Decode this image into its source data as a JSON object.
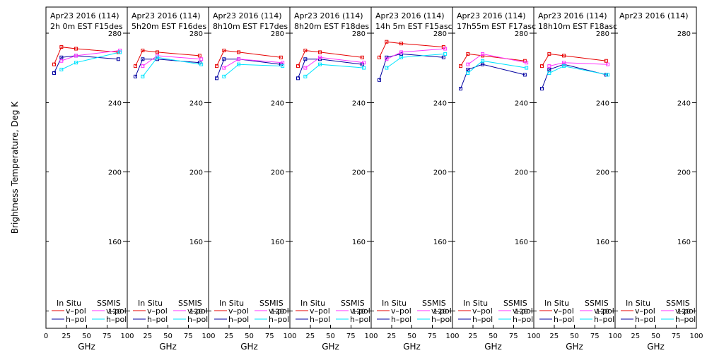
{
  "chart_data": {
    "type": "line",
    "ylabel": "Brightness Temperature, Deg K",
    "xlabel": "GHz",
    "xlim": [
      0,
      100
    ],
    "ylim": [
      110,
      295
    ],
    "xticks": [
      0,
      25,
      50,
      75,
      100
    ],
    "xtick_labels": [
      "0",
      "25",
      "50",
      "75",
      "100"
    ],
    "yticks": [
      120,
      160,
      200,
      240,
      280
    ],
    "legend": {
      "in_situ_header": "In Situ",
      "ssmis_header": "SSMIS",
      "v_pol": "v–pol",
      "h_pol": "h–pol"
    },
    "colors": {
      "insitu_v": "#e60000",
      "insitu_h": "#0000a0",
      "ssmis_v": "#ff33ff",
      "ssmis_h": "#00e5ff"
    },
    "panels": [
      {
        "date": "Apr23 2016 (114)",
        "time": "2h 0m  EST F15des",
        "insitu_v": {
          "x": [
            10,
            19,
            37,
            89
          ],
          "y": [
            262,
            272,
            271,
            269
          ]
        },
        "insitu_h": {
          "x": [
            10,
            19,
            37,
            89
          ],
          "y": [
            257,
            266,
            267,
            265
          ]
        },
        "ssmis_v": {
          "x": [
            19,
            37,
            91
          ],
          "y": [
            264,
            267,
            270
          ]
        },
        "ssmis_h": {
          "x": [
            19,
            37,
            91
          ],
          "y": [
            259,
            263,
            269
          ]
        }
      },
      {
        "date": "Apr23 2016 (114)",
        "time": "5h20m  EST F16des",
        "insitu_v": {
          "x": [
            10,
            19,
            37,
            89
          ],
          "y": [
            261,
            270,
            269,
            267
          ]
        },
        "insitu_h": {
          "x": [
            10,
            19,
            37,
            89
          ],
          "y": [
            255,
            265,
            265,
            263
          ]
        },
        "ssmis_v": {
          "x": [
            19,
            37,
            91
          ],
          "y": [
            261,
            267,
            265
          ]
        },
        "ssmis_h": {
          "x": [
            19,
            37,
            91
          ],
          "y": [
            255,
            266,
            262
          ]
        }
      },
      {
        "date": "Apr23 2016 (114)",
        "time": "8h10m  EST F17des",
        "insitu_v": {
          "x": [
            10,
            19,
            37,
            89
          ],
          "y": [
            261,
            270,
            269,
            266
          ]
        },
        "insitu_h": {
          "x": [
            10,
            19,
            37,
            89
          ],
          "y": [
            254,
            265,
            265,
            262
          ]
        },
        "ssmis_v": {
          "x": [
            19,
            37,
            91
          ],
          "y": [
            260,
            265,
            263
          ]
        },
        "ssmis_h": {
          "x": [
            19,
            37,
            91
          ],
          "y": [
            255,
            262,
            261
          ]
        }
      },
      {
        "date": "Apr23 2016 (114)",
        "time": "8h20m  EST F18des",
        "insitu_v": {
          "x": [
            10,
            19,
            37,
            89
          ],
          "y": [
            261,
            270,
            269,
            266
          ]
        },
        "insitu_h": {
          "x": [
            10,
            19,
            37,
            89
          ],
          "y": [
            254,
            265,
            265,
            262
          ]
        },
        "ssmis_v": {
          "x": [
            19,
            37,
            91
          ],
          "y": [
            260,
            266,
            263
          ]
        },
        "ssmis_h": {
          "x": [
            19,
            37,
            91
          ],
          "y": [
            255,
            262,
            260
          ]
        }
      },
      {
        "date": "Apr23 2016 (114)",
        "time": "14h 5m  EST F15asc",
        "insitu_v": {
          "x": [
            10,
            19,
            37,
            89
          ],
          "y": [
            266,
            275,
            274,
            272
          ]
        },
        "insitu_h": {
          "x": [
            10,
            19,
            37,
            89
          ],
          "y": [
            253,
            266,
            268,
            266
          ]
        },
        "ssmis_v": {
          "x": [
            19,
            37,
            91
          ],
          "y": [
            265,
            269,
            271
          ]
        },
        "ssmis_h": {
          "x": [
            19,
            37,
            91
          ],
          "y": [
            260,
            266,
            268
          ]
        }
      },
      {
        "date": "Apr23 2016 (114)",
        "time": "17h55m  EST F17asc",
        "insitu_v": {
          "x": [
            10,
            19,
            37,
            89
          ],
          "y": [
            261,
            268,
            267,
            264
          ]
        },
        "insitu_h": {
          "x": [
            10,
            19,
            37,
            89
          ],
          "y": [
            248,
            259,
            262,
            256
          ]
        },
        "ssmis_v": {
          "x": [
            19,
            37,
            91
          ],
          "y": [
            262,
            268,
            263
          ]
        },
        "ssmis_h": {
          "x": [
            19,
            37,
            91
          ],
          "y": [
            257,
            264,
            260
          ]
        }
      },
      {
        "date": "Apr23 2016 (114)",
        "time": "18h10m  EST F18asc",
        "insitu_v": {
          "x": [
            10,
            19,
            37,
            89
          ],
          "y": [
            261,
            268,
            267,
            264
          ]
        },
        "insitu_h": {
          "x": [
            10,
            19,
            37,
            89
          ],
          "y": [
            248,
            259,
            262,
            256
          ]
        },
        "ssmis_v": {
          "x": [
            19,
            37,
            91
          ],
          "y": [
            261,
            263,
            262
          ]
        },
        "ssmis_h": {
          "x": [
            19,
            37,
            91
          ],
          "y": [
            257,
            261,
            256
          ]
        }
      },
      {
        "date": "Apr23 2016 (114)",
        "time": "",
        "insitu_v": {
          "x": [],
          "y": []
        },
        "insitu_h": {
          "x": [],
          "y": []
        },
        "ssmis_v": {
          "x": [],
          "y": []
        },
        "ssmis_h": {
          "x": [],
          "y": []
        }
      }
    ]
  }
}
